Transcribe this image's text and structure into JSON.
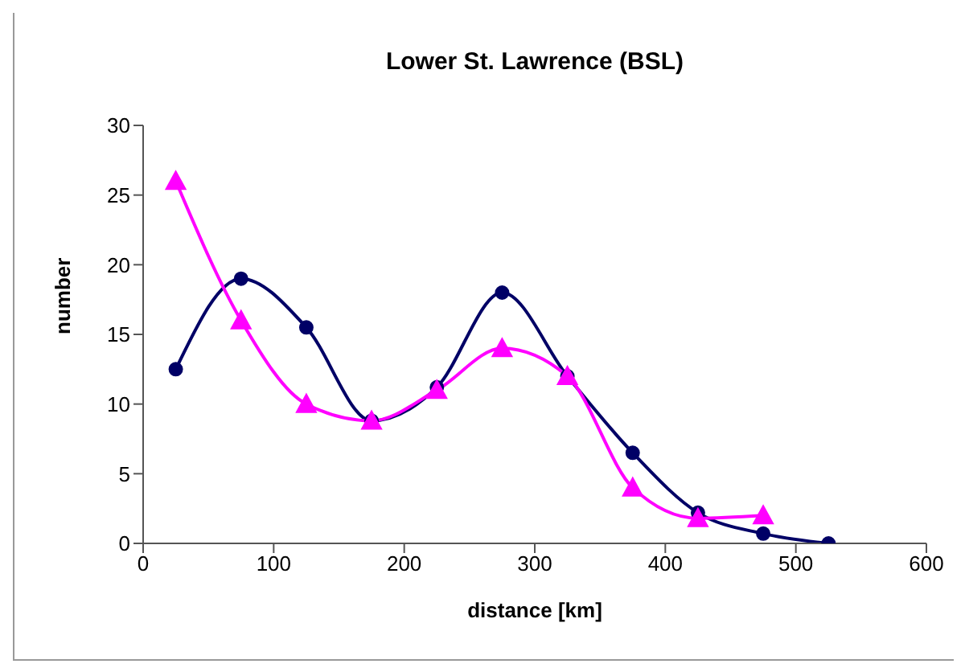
{
  "chart_data": {
    "type": "line",
    "title": "Lower St. Lawrence (BSL)",
    "xlabel": "distance [km]",
    "ylabel": "number",
    "xlim": [
      0,
      600
    ],
    "xticks": [
      0,
      100,
      200,
      300,
      400,
      500,
      600
    ],
    "ylim": [
      0,
      30
    ],
    "yticks": [
      0,
      5,
      10,
      15,
      20,
      25,
      30
    ],
    "grid": false,
    "series": [
      {
        "color": "#000066",
        "marker": "circle",
        "x": [
          25,
          75,
          125,
          175,
          225,
          275,
          325,
          375,
          425,
          475,
          525
        ],
        "values": [
          12.5,
          19,
          15.5,
          8.8,
          11.2,
          18,
          12,
          6.5,
          2.2,
          0.7,
          0
        ]
      },
      {
        "color": "#ff00ff",
        "marker": "triangle",
        "x": [
          25,
          75,
          125,
          175,
          225,
          275,
          325,
          375,
          425,
          475
        ],
        "values": [
          26,
          16,
          10,
          8.8,
          11,
          14,
          12,
          4,
          1.8,
          2
        ]
      }
    ]
  }
}
